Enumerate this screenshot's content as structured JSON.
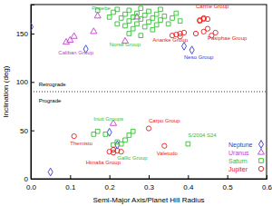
{
  "chart_data": {
    "type": "scatter",
    "x_label": "Semi-Major Axis/Planet Hill Radius",
    "y_label": "Inclination (deg)",
    "xlim": [
      0,
      0.6
    ],
    "ylim": [
      0,
      180
    ],
    "xticks": [
      {
        "value": 0,
        "label": "0.0"
      },
      0.1,
      0.2,
      0.3,
      0.4,
      0.5,
      0.6
    ],
    "yticks": [
      0,
      50,
      100,
      150
    ],
    "grid": false,
    "legend": "bottom right",
    "hline": {
      "value": 90,
      "line_style": "dotted"
    },
    "series": [
      {
        "name": "Neptune",
        "color": "#3a3ad0",
        "marker": "diamond",
        "x": [
          0.0,
          0.05,
          0.14,
          0.2,
          0.22,
          0.39,
          0.41
        ],
        "values": [
          157,
          7,
          134,
          48,
          35,
          137,
          133
        ]
      },
      {
        "name": "Uranus",
        "color": "#c040c8",
        "marker": "triangle",
        "x": [
          0.09,
          0.1,
          0.11,
          0.16,
          0.17,
          0.27,
          0.21,
          0.24
        ],
        "values": [
          141,
          143,
          147,
          152,
          168,
          167,
          57,
          142
        ]
      },
      {
        "name": "Saturn",
        "color": "#30c030",
        "marker": "square",
        "x": [
          0.17,
          0.2,
          0.21,
          0.22,
          0.22,
          0.23,
          0.24,
          0.24,
          0.25,
          0.25,
          0.26,
          0.26,
          0.27,
          0.27,
          0.28,
          0.28,
          0.29,
          0.29,
          0.3,
          0.3,
          0.31,
          0.31,
          0.32,
          0.32,
          0.33,
          0.33,
          0.34,
          0.35,
          0.36,
          0.37,
          0.38,
          0.25,
          0.28,
          0.16,
          0.17,
          0.19,
          0.25,
          0.26,
          0.21,
          0.22,
          0.23,
          0.24,
          0.4
        ],
        "values": [
          174,
          167,
          172,
          160,
          175,
          166,
          170,
          158,
          163,
          174,
          167,
          155,
          171,
          160,
          165,
          176,
          157,
          169,
          162,
          173,
          166,
          154,
          170,
          159,
          164,
          175,
          168,
          160,
          166,
          171,
          163,
          150,
          148,
          46,
          49,
          46,
          45,
          49,
          35,
          38,
          36,
          40,
          36
        ]
      },
      {
        "name": "Jupiter",
        "color": "#e82020",
        "marker": "circle",
        "x": [
          0.2,
          0.21,
          0.22,
          0.23,
          0.21,
          0.11,
          0.3,
          0.34,
          0.36,
          0.37,
          0.38,
          0.38,
          0.39,
          0.43,
          0.44,
          0.44,
          0.45,
          0.43,
          0.42,
          0.44,
          0.46,
          0.45,
          0.47
        ],
        "values": [
          28,
          27,
          29,
          28,
          30,
          44,
          52,
          34,
          148,
          149,
          150,
          147,
          151,
          164,
          165,
          166,
          165,
          163,
          150,
          152,
          148,
          155,
          151
        ]
      }
    ],
    "annotations": [
      {
        "text": "Phoebe",
        "x": 0.155,
        "y": 174,
        "color": "#30c030"
      },
      {
        "text": "Norse Group",
        "x": 0.2,
        "y": 137,
        "color": "#30c030"
      },
      {
        "text": "Caliban Group",
        "x": 0.07,
        "y": 128,
        "color": "#c040c8"
      },
      {
        "text": "Ananke Group",
        "x": 0.31,
        "y": 142,
        "color": "#e82020"
      },
      {
        "text": "Carme Group",
        "x": 0.42,
        "y": 176,
        "color": "#e82020"
      },
      {
        "text": "Pasiphae Group",
        "x": 0.45,
        "y": 143,
        "color": "#e82020"
      },
      {
        "text": "Neso Group",
        "x": 0.39,
        "y": 124,
        "color": "#3a3ad0"
      },
      {
        "text": "Retrograde",
        "x": 0.02,
        "y": 96,
        "color": "#000000"
      },
      {
        "text": "Prograde",
        "x": 0.02,
        "y": 79,
        "color": "#000000"
      },
      {
        "text": "Inuit Groups",
        "x": 0.16,
        "y": 60,
        "color": "#30c030"
      },
      {
        "text": "Gallic Group",
        "x": 0.22,
        "y": 20,
        "color": "#30c030"
      },
      {
        "text": "Carpo Group",
        "x": 0.3,
        "y": 58,
        "color": "#e82020"
      },
      {
        "text": "S/2004 S24",
        "x": 0.4,
        "y": 43,
        "color": "#30c030"
      },
      {
        "text": "Themisto",
        "x": 0.1,
        "y": 35,
        "color": "#e82020"
      },
      {
        "text": "Himalia Group",
        "x": 0.14,
        "y": 15,
        "color": "#e82020"
      },
      {
        "text": "Valetudo",
        "x": 0.32,
        "y": 24,
        "color": "#e82020"
      }
    ]
  }
}
